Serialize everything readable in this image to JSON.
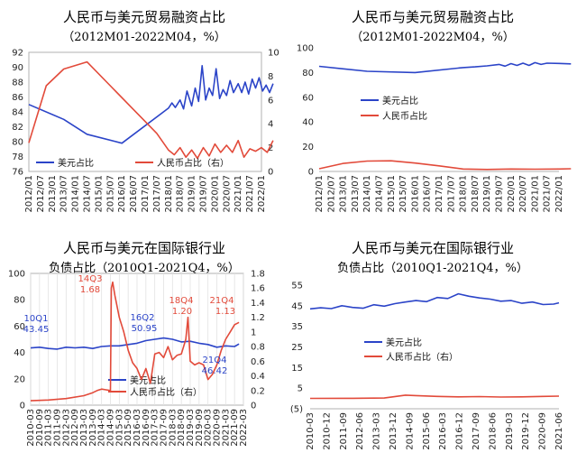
{
  "chart_data": [
    {
      "id": "p1",
      "type": "line",
      "title": "人民币与美元贸易融资占比",
      "subtitle": "（2012M01-2022M04，%）",
      "x_labels": [
        "2012/01",
        "2012/07",
        "2013/01",
        "2013/07",
        "2014/01",
        "2014/07",
        "2015/01",
        "2015/07",
        "2016/01",
        "2016/07",
        "2017/01",
        "2017/07",
        "2018/01",
        "2018/07",
        "2019/01",
        "2019/07",
        "2020/01",
        "2020/07",
        "2021/01",
        "2021/07",
        "2022/01"
      ],
      "y_left": {
        "range": [
          76,
          92
        ],
        "ticks": [
          "76",
          "78",
          "80",
          "82",
          "84",
          "86",
          "88",
          "90",
          "92"
        ]
      },
      "y_right": {
        "range": [
          0,
          10
        ],
        "ticks": [
          "0",
          "2",
          "4",
          "6",
          "8",
          "10"
        ]
      },
      "legend_position": "bottom",
      "series": [
        {
          "name": "美元占比",
          "axis": "left",
          "color": "#2b44c8",
          "points": [
            [
              0,
              85
            ],
            [
              3,
              83
            ],
            [
              5,
              81
            ],
            [
              8,
              79.8
            ],
            [
              12,
              84.5
            ],
            [
              12.3,
              85.2
            ],
            [
              12.6,
              84.6
            ],
            [
              13,
              85.6
            ],
            [
              13.3,
              84.4
            ],
            [
              13.6,
              86.8
            ],
            [
              14,
              84.8
            ],
            [
              14.3,
              87.2
            ],
            [
              14.6,
              85.4
            ],
            [
              14.9,
              90.2
            ],
            [
              15.2,
              85.6
            ],
            [
              15.5,
              87.2
            ],
            [
              15.8,
              86.2
            ],
            [
              16.1,
              89.8
            ],
            [
              16.4,
              85.8
            ],
            [
              16.7,
              87
            ],
            [
              17,
              86.2
            ],
            [
              17.3,
              88.2
            ],
            [
              17.6,
              86.6
            ],
            [
              18,
              87.8
            ],
            [
              18.3,
              86.6
            ],
            [
              18.6,
              88
            ],
            [
              18.9,
              86.4
            ],
            [
              19.2,
              88.4
            ],
            [
              19.5,
              87.2
            ],
            [
              19.8,
              88.6
            ],
            [
              20.1,
              86.8
            ],
            [
              20.4,
              87.6
            ],
            [
              20.7,
              86.6
            ],
            [
              21,
              87.8
            ]
          ]
        },
        {
          "name": "人民币占比（右）",
          "axis": "right",
          "color": "#e24a3a",
          "points": [
            [
              0,
              2.4
            ],
            [
              1.5,
              7.2
            ],
            [
              3,
              8.6
            ],
            [
              5,
              9.2
            ],
            [
              7,
              7.2
            ],
            [
              9,
              5.2
            ],
            [
              11,
              3.2
            ],
            [
              12,
              1.8
            ],
            [
              12.5,
              1.4
            ],
            [
              13,
              2
            ],
            [
              13.5,
              1.2
            ],
            [
              14,
              1.8
            ],
            [
              14.5,
              1.1
            ],
            [
              15,
              2
            ],
            [
              15.5,
              1.3
            ],
            [
              16,
              2.3
            ],
            [
              16.5,
              1.6
            ],
            [
              17,
              2.2
            ],
            [
              17.5,
              1.6
            ],
            [
              18,
              2.6
            ],
            [
              18.5,
              1.2
            ],
            [
              19,
              1.9
            ],
            [
              19.5,
              1.7
            ],
            [
              20,
              2
            ],
            [
              20.5,
              1.6
            ],
            [
              21,
              2.6
            ]
          ]
        }
      ]
    },
    {
      "id": "p2",
      "type": "line",
      "title": "人民币与美元贸易融资占比",
      "subtitle": "（2012M01-2022M04，%）",
      "x_labels": [
        "2012/01",
        "2012/07",
        "2013/01",
        "2013/07",
        "2014/01",
        "2014/07",
        "2015/01",
        "2015/07",
        "2016/01",
        "2016/07",
        "2017/01",
        "2017/07",
        "2018/01",
        "2018/07",
        "2019/01",
        "2019/07",
        "2020/01",
        "2020/07",
        "2021/01",
        "2021/07",
        "2022/01"
      ],
      "y_left": {
        "range": [
          0,
          100
        ],
        "ticks": [
          "0",
          "20",
          "40",
          "60",
          "80",
          "100"
        ]
      },
      "legend_position": "middle-center",
      "series": [
        {
          "name": "美元占比",
          "color": "#2b44c8",
          "points": [
            [
              0,
              85
            ],
            [
              4,
              81
            ],
            [
              8,
              80
            ],
            [
              12,
              84
            ],
            [
              13,
              84.6
            ],
            [
              14,
              85.4
            ],
            [
              15,
              86.6
            ],
            [
              15.5,
              85.2
            ],
            [
              16,
              87.2
            ],
            [
              16.5,
              85.8
            ],
            [
              17,
              87.6
            ],
            [
              17.5,
              85.8
            ],
            [
              18,
              88
            ],
            [
              18.5,
              86.6
            ],
            [
              19,
              87.6
            ],
            [
              20,
              87.4
            ],
            [
              21,
              87
            ]
          ]
        },
        {
          "name": "人民币占比",
          "color": "#e24a3a",
          "points": [
            [
              0,
              2.2
            ],
            [
              2,
              6.5
            ],
            [
              4,
              8.4
            ],
            [
              6,
              8.6
            ],
            [
              8,
              6.8
            ],
            [
              10,
              4.5
            ],
            [
              12,
              2
            ],
            [
              14,
              1.6
            ],
            [
              16,
              2
            ],
            [
              18,
              1.8
            ],
            [
              20,
              2
            ],
            [
              21,
              2.2
            ]
          ]
        }
      ]
    },
    {
      "id": "p3",
      "type": "line",
      "title": "人民币与美元在国际银行业",
      "subtitle": "负债占比（2010Q1-2021Q4，%）",
      "x_labels": [
        "2010-03",
        "2010-09",
        "2011-03",
        "2011-09",
        "2012-03",
        "2012-09",
        "2013-03",
        "2013-09",
        "2014-03",
        "2014-09",
        "2015-03",
        "2015-09",
        "2016-03",
        "2016-09",
        "2017-03",
        "2017-09",
        "2018-03",
        "2018-09",
        "2019-03",
        "2019-09",
        "2020-03",
        "2020-09",
        "2021-03",
        "2021-09",
        "2022-03"
      ],
      "y_left": {
        "range": [
          0,
          100
        ],
        "ticks": [
          "0",
          "20",
          "40",
          "60",
          "80",
          "100"
        ]
      },
      "y_right": {
        "range": [
          0,
          1.8
        ],
        "ticks": [
          "0",
          "0.2",
          "0.4",
          "0.6",
          "0.8",
          "1",
          "1.2",
          "1.4",
          "1.6",
          "1.8"
        ]
      },
      "legend_position": "bottom-center",
      "annotations": [
        {
          "text": "10Q1",
          "color": "#2b44c8"
        },
        {
          "text": "43.45",
          "color": "#2b44c8"
        },
        {
          "text": "14Q3",
          "color": "#e24a3a"
        },
        {
          "text": "1.68",
          "color": "#e24a3a"
        },
        {
          "text": "16Q2",
          "color": "#2b44c8"
        },
        {
          "text": "50.95",
          "color": "#2b44c8"
        },
        {
          "text": "18Q4",
          "color": "#e24a3a"
        },
        {
          "text": "1.20",
          "color": "#e24a3a"
        },
        {
          "text": "21Q4",
          "color": "#e24a3a"
        },
        {
          "text": "1.13",
          "color": "#e24a3a"
        },
        {
          "text": "21Q4",
          "color": "#2b44c8"
        },
        {
          "text": "46.42",
          "color": "#2b44c8"
        }
      ],
      "series": [
        {
          "name": "美元占比",
          "axis": "left",
          "color": "#2b44c8",
          "points": [
            [
              0,
              43.45
            ],
            [
              2,
              44
            ],
            [
              4,
              43
            ],
            [
              6,
              42.5
            ],
            [
              8,
              44
            ],
            [
              10,
              43.5
            ],
            [
              12,
              44
            ],
            [
              14,
              43
            ],
            [
              16,
              44.5
            ],
            [
              18,
              45
            ],
            [
              20,
              45
            ],
            [
              22,
              46
            ],
            [
              24,
              47
            ],
            [
              26,
              49
            ],
            [
              28,
              50
            ],
            [
              30,
              50.95
            ],
            [
              32,
              50
            ],
            [
              34,
              48
            ],
            [
              36,
              48.5
            ],
            [
              38,
              47
            ],
            [
              40,
              46
            ],
            [
              42,
              44
            ],
            [
              44,
              45
            ],
            [
              46,
              44.5
            ],
            [
              47,
              46.42
            ]
          ]
        },
        {
          "name": "人民币占比（右）",
          "axis": "right",
          "color": "#e24a3a",
          "points": [
            [
              0,
              0.06
            ],
            [
              4,
              0.07
            ],
            [
              8,
              0.09
            ],
            [
              12,
              0.13
            ],
            [
              14,
              0.17
            ],
            [
              15,
              0.2
            ],
            [
              16,
              0.22
            ],
            [
              17,
              0.21
            ],
            [
              18,
              0.2
            ],
            [
              18.2,
              1.6
            ],
            [
              18.5,
              1.68
            ],
            [
              19,
              1.5
            ],
            [
              20,
              1.2
            ],
            [
              21,
              1
            ],
            [
              22,
              0.75
            ],
            [
              23,
              0.58
            ],
            [
              24,
              0.5
            ],
            [
              25,
              0.35
            ],
            [
              26,
              0.5
            ],
            [
              27,
              0.3
            ],
            [
              28,
              0.7
            ],
            [
              29,
              0.72
            ],
            [
              30,
              0.65
            ],
            [
              31,
              0.8
            ],
            [
              32,
              0.62
            ],
            [
              33,
              0.68
            ],
            [
              34,
              0.7
            ],
            [
              35,
              0.9
            ],
            [
              35.5,
              1.2
            ],
            [
              36,
              0.6
            ],
            [
              37,
              0.55
            ],
            [
              38,
              0.58
            ],
            [
              39,
              0.55
            ],
            [
              40,
              0.35
            ],
            [
              41,
              0.42
            ],
            [
              42,
              0.55
            ],
            [
              43,
              0.75
            ],
            [
              44,
              0.9
            ],
            [
              45,
              1
            ],
            [
              46,
              1.1
            ],
            [
              47,
              1.13
            ]
          ]
        }
      ]
    },
    {
      "id": "p4",
      "type": "line",
      "title": "人民币与美元在国际银行业",
      "subtitle": "负债占比（2010Q1-2021Q4，%）",
      "x_labels": [
        "2010-03",
        "2010-12",
        "2011-09",
        "2012-06",
        "2013-03",
        "2013-12",
        "2014-09",
        "2015-06",
        "2016-03",
        "2016-12",
        "2017-09",
        "2018-06",
        "2019-03",
        "2019-12",
        "2020-09",
        "2021-06"
      ],
      "y_left": {
        "range": [
          -5,
          55
        ],
        "ticks": [
          "(5)",
          "5",
          "15",
          "25",
          "35",
          "45",
          "55"
        ]
      },
      "legend_position": "middle-center",
      "series": [
        {
          "name": "美元占比",
          "color": "#2b44c8",
          "points": [
            [
              0,
              43.5
            ],
            [
              2,
              44
            ],
            [
              4,
              43.6
            ],
            [
              6,
              45
            ],
            [
              8,
              44.2
            ],
            [
              10,
              43.8
            ],
            [
              12,
              45.5
            ],
            [
              14,
              44.8
            ],
            [
              16,
              46
            ],
            [
              18,
              46.8
            ],
            [
              20,
              47.5
            ],
            [
              22,
              47
            ],
            [
              24,
              49
            ],
            [
              26,
              48.5
            ],
            [
              28,
              50.8
            ],
            [
              30,
              49.6
            ],
            [
              32,
              48.8
            ],
            [
              34,
              48.2
            ],
            [
              36,
              47.2
            ],
            [
              38,
              47.5
            ],
            [
              40,
              46.2
            ],
            [
              42,
              46.8
            ],
            [
              44,
              45.6
            ],
            [
              46,
              45.8
            ],
            [
              47,
              46.4
            ]
          ]
        },
        {
          "name": "人民币占比（右）",
          "color": "#e24a3a",
          "points": [
            [
              0,
              0.05
            ],
            [
              8,
              0.1
            ],
            [
              14,
              0.2
            ],
            [
              18,
              1.6
            ],
            [
              20,
              1.4
            ],
            [
              24,
              1
            ],
            [
              28,
              0.8
            ],
            [
              32,
              0.9
            ],
            [
              36,
              0.7
            ],
            [
              40,
              0.8
            ],
            [
              44,
              1
            ],
            [
              47,
              1.13
            ]
          ]
        }
      ]
    }
  ]
}
